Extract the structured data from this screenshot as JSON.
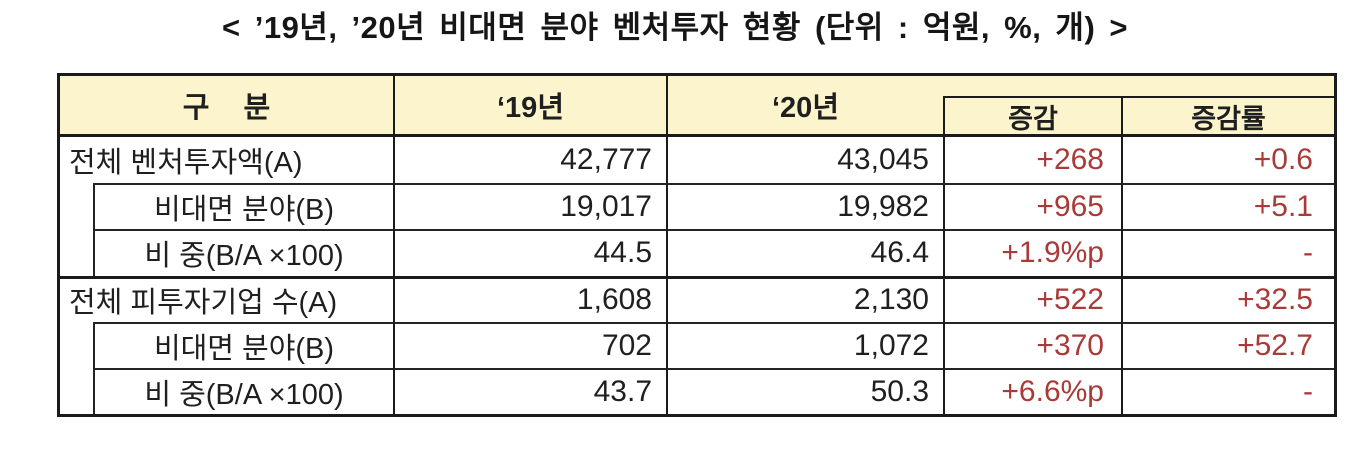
{
  "title": "< ’19년, ’20년 비대면 분야 벤처투자 현황 (단위 : 억원, %, 개) >",
  "colors": {
    "header_bg": "#FBF4CD",
    "border": "#1B1B1B",
    "delta_red": "#A93A38",
    "text": "#1F1F1F"
  },
  "table": {
    "headers": {
      "category": "구 분",
      "y2019": "‘19년",
      "y2020": "‘20년",
      "delta": "증감",
      "delta_rate": "증감률"
    },
    "rows": [
      {
        "label": "전체 벤처투자액(A)",
        "indent": false,
        "y2019": "42,777",
        "y2020": "43,045",
        "delta": "+268",
        "delta_rate": "+0.6"
      },
      {
        "label": "비대면 분야(B)",
        "indent": true,
        "y2019": "19,017",
        "y2020": "19,982",
        "delta": "+965",
        "delta_rate": "+5.1"
      },
      {
        "label": "비 중(B/A ×100)",
        "indent": true,
        "y2019": "44.5",
        "y2020": "46.4",
        "delta": "+1.9%p",
        "delta_rate": "-"
      },
      {
        "label": "전체 피투자기업 수(A)",
        "indent": false,
        "y2019": "1,608",
        "y2020": "2,130",
        "delta": "+522",
        "delta_rate": "+32.5"
      },
      {
        "label": "비대면 분야(B)",
        "indent": true,
        "y2019": "702",
        "y2020": "1,072",
        "delta": "+370",
        "delta_rate": "+52.7"
      },
      {
        "label": "비 중(B/A ×100)",
        "indent": true,
        "y2019": "43.7",
        "y2020": "50.3",
        "delta": "+6.6%p",
        "delta_rate": "-"
      }
    ]
  }
}
